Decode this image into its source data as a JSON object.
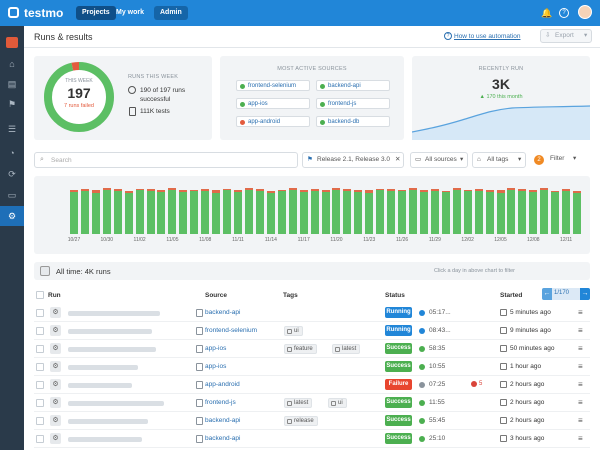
{
  "app": {
    "name": "testmo"
  },
  "topnav": {
    "projects": "Projects",
    "my_work": "My work",
    "admin": "Admin"
  },
  "header": {
    "title": "Runs & results",
    "help_link": "How to use automation",
    "export": "Export"
  },
  "this_week": {
    "label": "THIS WEEK",
    "count": "197",
    "failed": "7 runs failed",
    "success_fraction": 0.964
  },
  "runs_this_week": {
    "label": "RUNS THIS WEEK",
    "successful": "190 of 197 runs successful",
    "tests": "111K tests"
  },
  "active_sources": {
    "label": "MOST ACTIVE SOURCES",
    "items": [
      {
        "name": "frontend-selenium",
        "color": "#4caf50"
      },
      {
        "name": "backend-api",
        "color": "#4caf50"
      },
      {
        "name": "app-ios",
        "color": "#4caf50"
      },
      {
        "name": "frontend-js",
        "color": "#4caf50"
      },
      {
        "name": "app-android",
        "color": "#e35b3d"
      },
      {
        "name": "backend-db",
        "color": "#4caf50"
      }
    ]
  },
  "recently_run": {
    "label": "RECENTLY RUN",
    "value": "3K",
    "trend": "▲ 170 this month"
  },
  "filters": {
    "search_placeholder": "Search",
    "milestone": "Release 2.1, Release 3.0",
    "sources": "All sources",
    "tags": "All tags",
    "filter_count": "2",
    "filter": "Filter"
  },
  "chart_data": {
    "type": "bar",
    "x_tick_labels": [
      "10/27",
      "10/30",
      "11/02",
      "11/05",
      "11/08",
      "11/11",
      "11/14",
      "11/17",
      "11/20",
      "11/23",
      "11/26",
      "11/29",
      "12/02",
      "12/05",
      "12/08",
      "12/11"
    ],
    "series": [
      {
        "name": "passed",
        "color": "#5cbf64",
        "values": [
          0.88,
          0.9,
          0.86,
          0.92,
          0.9,
          0.85,
          0.91,
          0.9,
          0.88,
          0.92,
          0.87,
          0.89,
          0.9,
          0.86,
          0.91,
          0.88,
          0.92,
          0.9,
          0.86,
          0.89,
          0.91,
          0.88,
          0.9,
          0.87,
          0.92,
          0.9,
          0.88,
          0.86,
          0.91,
          0.9,
          0.89,
          0.92,
          0.88,
          0.9,
          0.87,
          0.91,
          0.89,
          0.9,
          0.88,
          0.86,
          0.92,
          0.9,
          0.88,
          0.91,
          0.87,
          0.9,
          0.86
        ]
      },
      {
        "name": "failed",
        "color": "#e06b4a",
        "values": [
          0.04,
          0.03,
          0.05,
          0.03,
          0.04,
          0.04,
          0.03,
          0.04,
          0.03,
          0.03,
          0.04,
          0.03,
          0.04,
          0.05,
          0.03,
          0.04,
          0.03,
          0.04,
          0.04,
          0.03,
          0.04,
          0.03,
          0.04,
          0.04,
          0.03,
          0.04,
          0.03,
          0.05,
          0.03,
          0.04,
          0.03,
          0.03,
          0.04,
          0.04,
          0.03,
          0.04,
          0.03,
          0.04,
          0.04,
          0.05,
          0.03,
          0.04,
          0.03,
          0.04,
          0.03,
          0.04,
          0.03
        ]
      }
    ]
  },
  "all_time": {
    "label": "All time: 4K runs",
    "hint": "Click a day in above chart to filter"
  },
  "table": {
    "headers": {
      "run": "Run",
      "source": "Source",
      "tags": "Tags",
      "status": "Status",
      "started": "Started"
    },
    "pager": "1/170",
    "rows": [
      {
        "source": "backend-api",
        "tags": [],
        "status": "Running",
        "status_color": "#2186d8",
        "duration": "05:17...",
        "dur_color": "#2186d8",
        "fail": "",
        "started": "5 minutes ago",
        "skel": 92
      },
      {
        "source": "frontend-selenium",
        "tags": [
          "ui"
        ],
        "status": "Running",
        "status_color": "#2186d8",
        "duration": "08:43...",
        "dur_color": "#2186d8",
        "fail": "",
        "started": "9 minutes ago",
        "skel": 84
      },
      {
        "source": "app-ios",
        "tags": [
          "feature",
          "latest"
        ],
        "status": "Success",
        "status_color": "#4caf50",
        "duration": "58:35",
        "dur_color": "#4caf50",
        "fail": "",
        "started": "50 minutes ago",
        "skel": 88
      },
      {
        "source": "app-ios",
        "tags": [],
        "status": "Success",
        "status_color": "#4caf50",
        "duration": "10:55",
        "dur_color": "#4caf50",
        "fail": "",
        "started": "1 hour ago",
        "skel": 70
      },
      {
        "source": "app-android",
        "tags": [],
        "status": "Failure",
        "status_color": "#e8462f",
        "duration": "07:25",
        "dur_color": "#8a939c",
        "fail": "5",
        "started": "2 hours ago",
        "skel": 64
      },
      {
        "source": "frontend-js",
        "tags": [
          "latest",
          "ui"
        ],
        "status": "Success",
        "status_color": "#4caf50",
        "duration": "11:55",
        "dur_color": "#4caf50",
        "fail": "",
        "started": "2 hours ago",
        "skel": 96
      },
      {
        "source": "backend-api",
        "tags": [
          "release"
        ],
        "status": "Success",
        "status_color": "#4caf50",
        "duration": "55:45",
        "dur_color": "#4caf50",
        "fail": "",
        "started": "2 hours ago",
        "skel": 80
      },
      {
        "source": "backend-api",
        "tags": [],
        "status": "Success",
        "status_color": "#4caf50",
        "duration": "25:10",
        "dur_color": "#4caf50",
        "fail": "",
        "started": "3 hours ago",
        "skel": 74
      }
    ]
  }
}
